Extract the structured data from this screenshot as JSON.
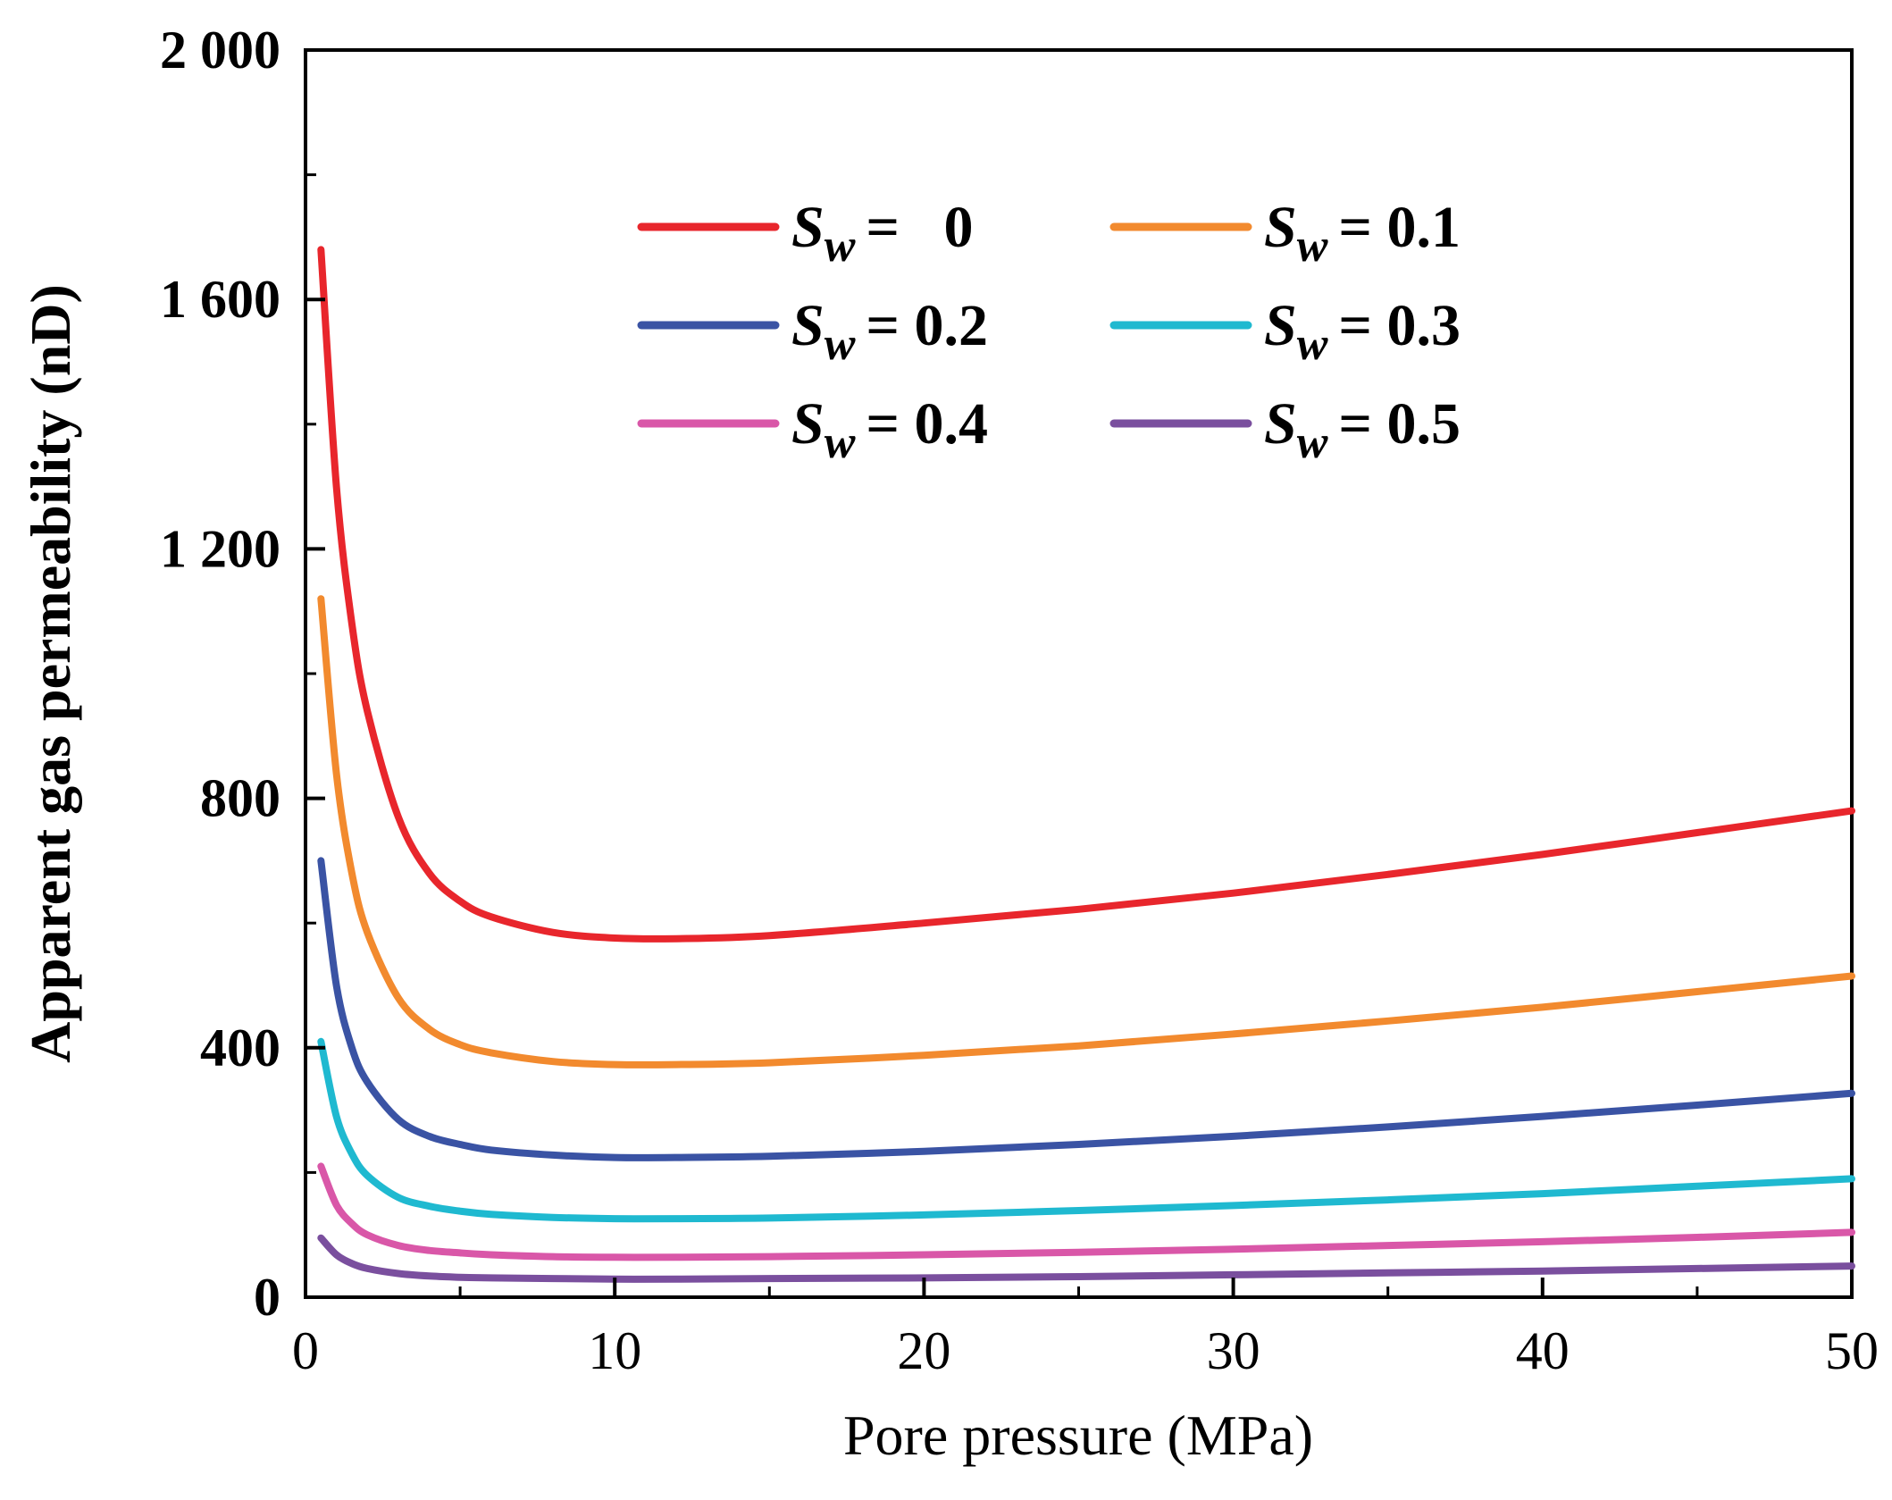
{
  "chart_data": {
    "type": "line",
    "title": "",
    "xlabel": "Pore pressure (MPa)",
    "ylabel": "Apparent gas permeability (nD)",
    "xlim": [
      0,
      50
    ],
    "ylim": [
      0,
      2000
    ],
    "xticks": [
      0,
      10,
      20,
      30,
      40,
      50
    ],
    "xtick_labels": [
      "0",
      "10",
      "20",
      "30",
      "40",
      "50"
    ],
    "yticks": [
      0,
      400,
      800,
      1200,
      1600,
      2000
    ],
    "ytick_labels": [
      "0",
      "400",
      "800",
      "1 200",
      "1 600",
      "2 000"
    ],
    "grid": false,
    "legend_position": "top-center",
    "series": [
      {
        "name": "Sw = 0",
        "symbol": "S",
        "subscript": "w",
        "value_text": "=   0",
        "color": "#e8262c",
        "x": [
          0.5,
          1,
          1.5,
          2,
          3,
          4,
          5,
          6,
          8,
          10,
          12,
          15,
          20,
          25,
          30,
          35,
          40,
          45,
          50
        ],
        "y": [
          1680,
          1300,
          1080,
          940,
          770,
          680,
          635,
          610,
          585,
          576,
          575,
          580,
          600,
          622,
          648,
          678,
          710,
          745,
          780
        ]
      },
      {
        "name": "Sw = 0.1",
        "symbol": "S",
        "subscript": "w",
        "value_text": "= 0.1",
        "color": "#f28a2e",
        "x": [
          0.5,
          1,
          1.5,
          2,
          3,
          4,
          5,
          6,
          8,
          10,
          12,
          15,
          20,
          25,
          30,
          35,
          40,
          45,
          50
        ],
        "y": [
          1120,
          840,
          680,
          585,
          480,
          430,
          405,
          392,
          378,
          373,
          373,
          376,
          388,
          403,
          422,
          443,
          465,
          490,
          515
        ]
      },
      {
        "name": "Sw = 0.2",
        "symbol": "S",
        "subscript": "w",
        "value_text": "= 0.2",
        "color": "#3a53a4",
        "x": [
          0.5,
          1,
          1.5,
          2,
          3,
          4,
          5,
          6,
          8,
          10,
          12,
          15,
          20,
          25,
          30,
          35,
          40,
          45,
          50
        ],
        "y": [
          700,
          500,
          400,
          345,
          285,
          258,
          245,
          236,
          228,
          224,
          224,
          226,
          234,
          245,
          258,
          273,
          290,
          308,
          327
        ]
      },
      {
        "name": "Sw = 0.3",
        "symbol": "S",
        "subscript": "w",
        "value_text": "= 0.3",
        "color": "#1fb9d0",
        "x": [
          0.5,
          1,
          1.5,
          2,
          3,
          4,
          5,
          6,
          8,
          10,
          12,
          15,
          20,
          25,
          30,
          35,
          40,
          45,
          50
        ],
        "y": [
          410,
          290,
          230,
          195,
          160,
          146,
          138,
          133,
          128,
          126,
          126,
          127,
          132,
          139,
          147,
          156,
          166,
          178,
          190
        ]
      },
      {
        "name": "Sw = 0.4",
        "symbol": "S",
        "subscript": "w",
        "value_text": "= 0.4",
        "color": "#d957a8",
        "x": [
          0.5,
          1,
          1.5,
          2,
          3,
          4,
          5,
          6,
          8,
          10,
          12,
          15,
          20,
          25,
          30,
          35,
          40,
          45,
          50
        ],
        "y": [
          210,
          148,
          118,
          100,
          83,
          75,
          71,
          68,
          65,
          64,
          64,
          65,
          68,
          72,
          77,
          83,
          89,
          96,
          104
        ]
      },
      {
        "name": "Sw = 0.5",
        "symbol": "S",
        "subscript": "w",
        "value_text": "= 0.5",
        "color": "#7a4f9e",
        "x": [
          0.5,
          1,
          1.5,
          2,
          3,
          4,
          5,
          6,
          8,
          10,
          12,
          15,
          20,
          25,
          30,
          35,
          40,
          45,
          50
        ],
        "y": [
          95,
          68,
          54,
          46,
          38,
          34,
          32,
          31,
          30,
          29,
          29,
          30,
          31,
          33,
          36,
          39,
          42,
          46,
          50
        ]
      }
    ]
  }
}
